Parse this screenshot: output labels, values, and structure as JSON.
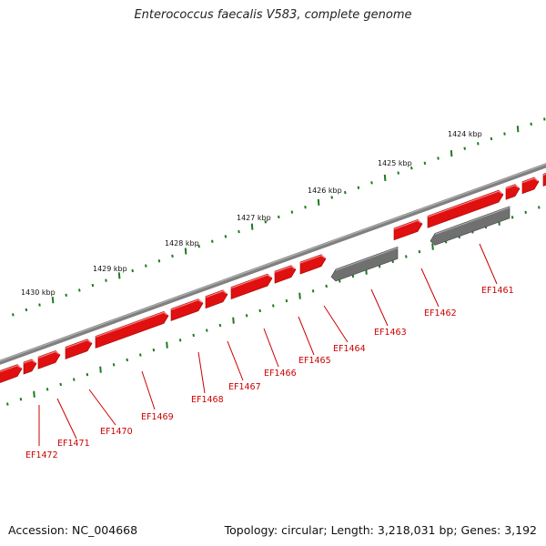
{
  "title": "Enterococcus faecalis V583, complete genome",
  "footer": {
    "accession": "Accession: NC_004668",
    "stats": "Topology: circular; Length: 3,218,031 bp; Genes: 3,192"
  },
  "colors": {
    "backbone": "#808080",
    "gene_fwd": "#e01010",
    "gene_rev": "#707070",
    "tick": "#1e7a1e",
    "label": "#cc0000"
  },
  "kbp_labels": [
    "1424 kbp",
    "1425 kbp",
    "1426 kbp",
    "1427 kbp",
    "1428 kbp",
    "1429 kbp",
    "1430 kbp"
  ],
  "gene_labels": [
    "EF1461",
    "EF1462",
    "EF1463",
    "EF1464",
    "EF1465",
    "EF1466",
    "EF1467",
    "EF1468",
    "EF1469",
    "EF1470",
    "EF1471",
    "EF1472"
  ]
}
